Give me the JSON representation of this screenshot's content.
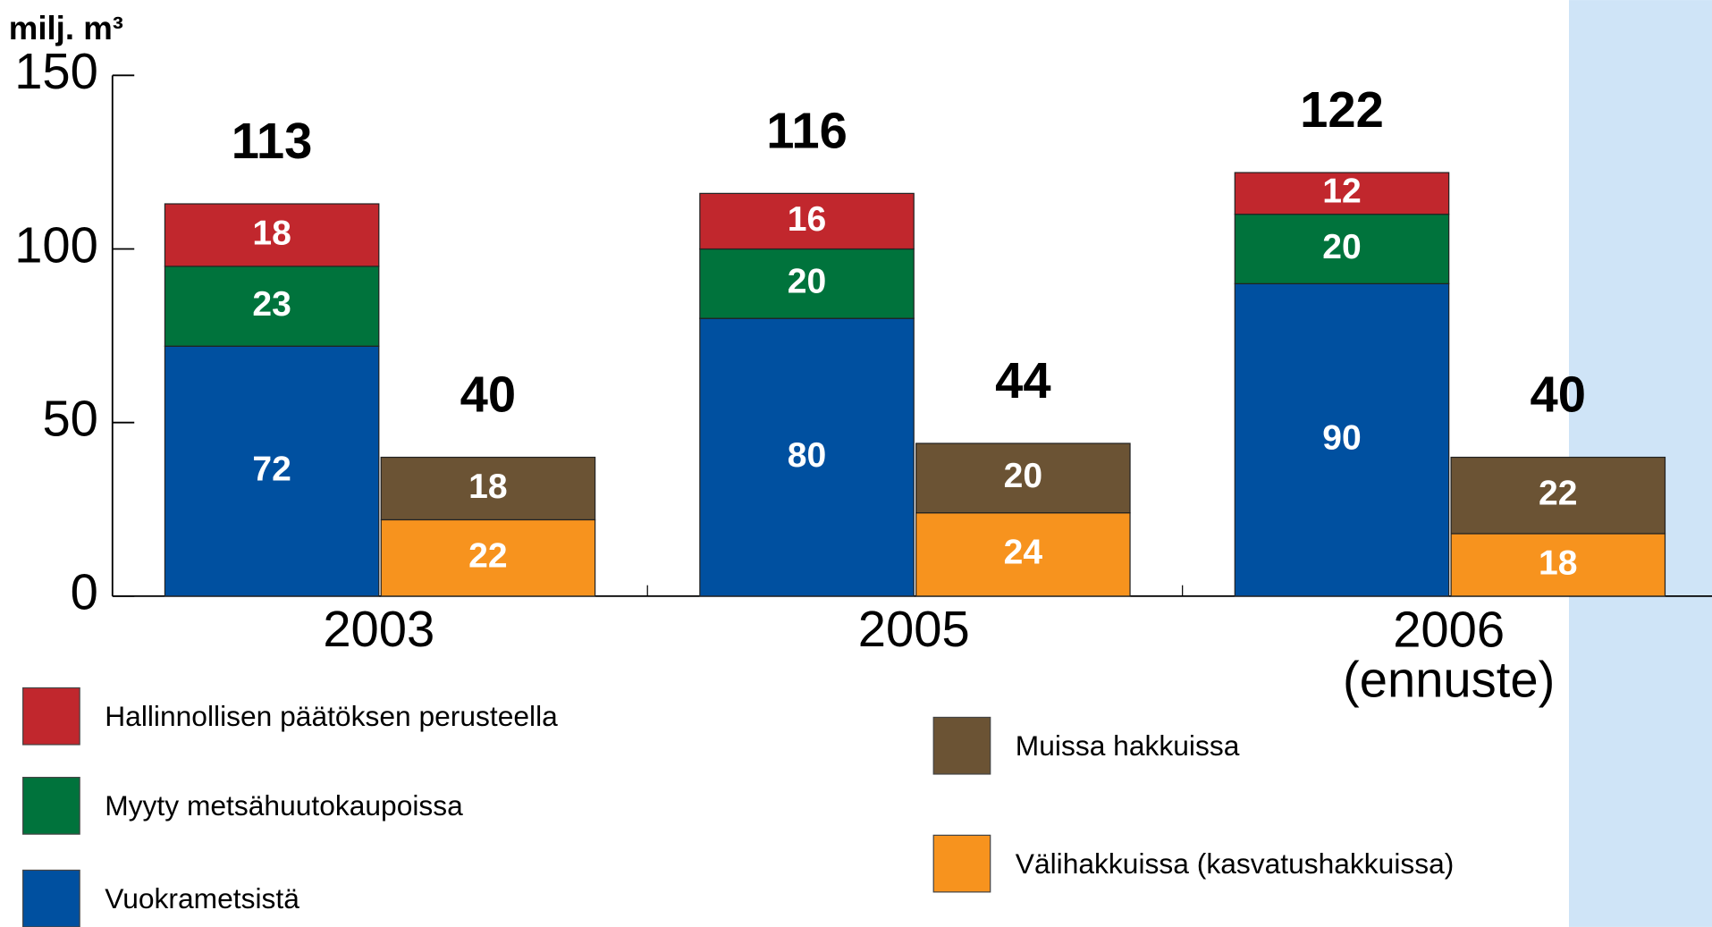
{
  "chart_data": {
    "type": "grouped_stacked_bar",
    "ylabel": "milj. m³",
    "categories": [
      "2003",
      "2005",
      "2006\n(ennuste)"
    ],
    "ylim": [
      0,
      150
    ],
    "yticks": [
      0,
      50,
      100,
      150
    ],
    "series": [
      {
        "name": "Vuokrametsistä",
        "color": "#0050a0",
        "stack": 0,
        "values": [
          72,
          80,
          90
        ]
      },
      {
        "name": "Myyty metsähuutokaupoissa",
        "color": "#00733c",
        "stack": 0,
        "values": [
          23,
          20,
          20
        ]
      },
      {
        "name": "Hallinnollisen päätöksen perusteella",
        "color": "#c1272d",
        "stack": 0,
        "values": [
          18,
          16,
          12
        ]
      },
      {
        "name": "Välihakkuissa (kasvatushakkuissa)",
        "color": "#f7931e",
        "stack": 1,
        "values": [
          22,
          24,
          18
        ]
      },
      {
        "name": "Muissa hakkuissa",
        "color": "#6b5334",
        "stack": 1,
        "values": [
          18,
          20,
          22
        ]
      }
    ],
    "totals": [
      [
        113,
        116,
        122
      ],
      [
        40,
        44,
        40
      ]
    ]
  }
}
